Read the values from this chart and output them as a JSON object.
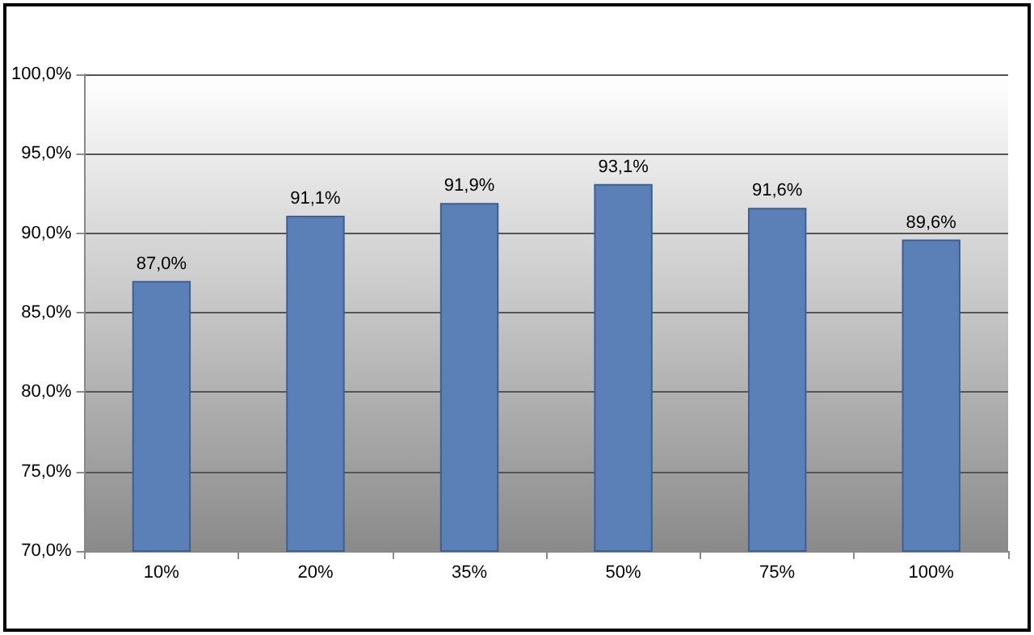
{
  "chart_data": {
    "type": "bar",
    "categories": [
      "10%",
      "20%",
      "35%",
      "50%",
      "75%",
      "100%"
    ],
    "values": [
      87.0,
      91.1,
      91.9,
      93.1,
      91.6,
      89.6
    ],
    "value_labels": [
      "87,0%",
      "91,1%",
      "91,9%",
      "93,1%",
      "91,6%",
      "89,6%"
    ],
    "color": "#5b80b8",
    "ylim": [
      70,
      100
    ],
    "yticks": [
      {
        "value": 70,
        "label": "70,0%"
      },
      {
        "value": 75,
        "label": "75,0%"
      },
      {
        "value": 80,
        "label": "80,0%"
      },
      {
        "value": 85,
        "label": "85,0%"
      },
      {
        "value": 90,
        "label": "90,0%"
      },
      {
        "value": 95,
        "label": "95,0%"
      },
      {
        "value": 100,
        "label": "100,0%"
      }
    ],
    "grid": "y"
  }
}
